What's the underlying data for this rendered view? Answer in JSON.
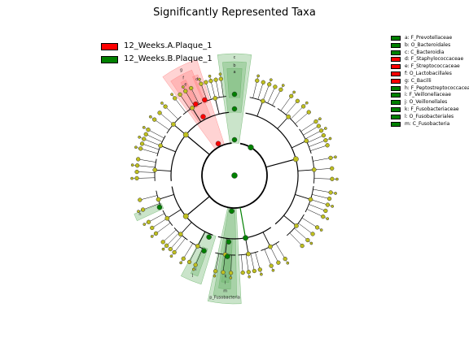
{
  "title": "Significantly Represented Taxa",
  "colors": {
    "group_a": "#ff0000",
    "group_b": "#008000",
    "node_default": "#bfbf1f",
    "shade_a": "#ff8080",
    "shade_b": "#66b266"
  },
  "group_legend": [
    {
      "label": "12_Weeks.A.Plaque_1",
      "color": "#ff0000"
    },
    {
      "label": "12_Weeks.B.Plaque_1",
      "color": "#008000"
    }
  ],
  "chart_data": {
    "type": "cladogram",
    "title": "Significantly Represented Taxa",
    "groups": [
      "12_Weeks.A.Plaque_1",
      "12_Weeks.B.Plaque_1"
    ],
    "taxa_legend": [
      {
        "key": "a",
        "label": "a: F_Prevotellaceae",
        "group": "12_Weeks.B.Plaque_1"
      },
      {
        "key": "b",
        "label": "b: O_Bacteroidales",
        "group": "12_Weeks.B.Plaque_1"
      },
      {
        "key": "c",
        "label": "c: C_Bacteroidia",
        "group": "12_Weeks.B.Plaque_1"
      },
      {
        "key": "d",
        "label": "d: F_Staphylococcaceae",
        "group": "12_Weeks.A.Plaque_1"
      },
      {
        "key": "e",
        "label": "e: F_Streptococcaceae",
        "group": "12_Weeks.A.Plaque_1"
      },
      {
        "key": "f",
        "label": "f: O_Lactobacillales",
        "group": "12_Weeks.A.Plaque_1"
      },
      {
        "key": "g",
        "label": "g: C_Bacilli",
        "group": "12_Weeks.A.Plaque_1"
      },
      {
        "key": "h",
        "label": "h: F_Peptostreptococcaceae",
        "group": "12_Weeks.B.Plaque_1"
      },
      {
        "key": "i",
        "label": "i: F_Veillonellaceae",
        "group": "12_Weeks.B.Plaque_1"
      },
      {
        "key": "j",
        "label": "j: O_Veillonellales",
        "group": "12_Weeks.B.Plaque_1"
      },
      {
        "key": "k",
        "label": "k: F_Fusobacteriaceae",
        "group": "12_Weeks.B.Plaque_1"
      },
      {
        "key": "l",
        "label": "l: O_Fusobacteriales",
        "group": "12_Weeks.B.Plaque_1"
      },
      {
        "key": "m",
        "label": "m: C_Fusobacteria",
        "group": "12_Weeks.B.Plaque_1"
      }
    ],
    "highlighted_clades": [
      {
        "label": "a",
        "group": "12_Weeks.B.Plaque_1",
        "level": "family",
        "angle_start": -94,
        "angle_end": -86
      },
      {
        "label": "b",
        "group": "12_Weeks.B.Plaque_1",
        "level": "order",
        "angle_start": -96,
        "angle_end": -84
      },
      {
        "label": "c",
        "group": "12_Weeks.B.Plaque_1",
        "level": "class",
        "angle_start": -98,
        "angle_end": -82
      },
      {
        "label": "d",
        "group": "12_Weeks.A.Plaque_1",
        "level": "family",
        "angle_start": -113,
        "angle_end": -110
      },
      {
        "label": "e",
        "group": "12_Weeks.A.Plaque_1",
        "level": "family",
        "angle_start": -120,
        "angle_end": -117
      },
      {
        "label": "f",
        "group": "12_Weeks.A.Plaque_1",
        "level": "order",
        "angle_start": -124,
        "angle_end": -112
      },
      {
        "label": "g",
        "group": "12_Weeks.A.Plaque_1",
        "level": "class",
        "angle_start": -126,
        "angle_end": -108
      },
      {
        "label": "h",
        "group": "12_Weeks.B.Plaque_1",
        "level": "family",
        "angle_start": 155,
        "angle_end": 159
      },
      {
        "label": "i",
        "group": "12_Weeks.B.Plaque_1",
        "level": "family",
        "angle_start": 110,
        "angle_end": 114
      },
      {
        "label": "j",
        "group": "12_Weeks.B.Plaque_1",
        "level": "order",
        "angle_start": 107,
        "angle_end": 118
      },
      {
        "label": "k",
        "group": "12_Weeks.B.Plaque_1",
        "level": "family",
        "angle_start": 93,
        "angle_end": 97
      },
      {
        "label": "l",
        "group": "12_Weeks.B.Plaque_1",
        "level": "order",
        "angle_start": 92,
        "angle_end": 98
      },
      {
        "label": "m",
        "group": "12_Weeks.B.Plaque_1",
        "level": "class",
        "angle_start": 89,
        "angle_end": 100
      },
      {
        "label": "p_Fusobacteria",
        "group": "12_Weeks.B.Plaque_1",
        "level": "phylum",
        "angle_start": 87,
        "angle_end": 102
      }
    ]
  }
}
